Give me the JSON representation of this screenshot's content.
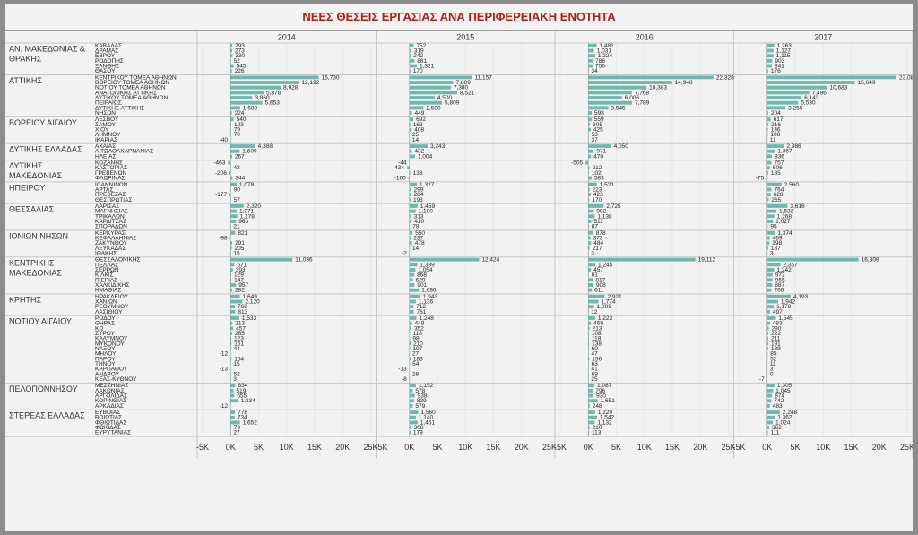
{
  "chart_data": {
    "type": "bar",
    "orientation": "horizontal",
    "title": "ΝΕΕΣ ΘΕΣΕΙΣ ΕΡΓΑΣΙΑΣ ΑΝΑ ΠΕΡΙΦΕΡΕΙΑΚΗ ΕΝΟΤΗΤΑ",
    "bar_color": "#6fb8ad",
    "title_color": "#b31b1b",
    "xlim": [
      -5000,
      25000
    ],
    "x_ticks": [
      -5000,
      0,
      5000,
      10000,
      15000,
      20000,
      25000
    ],
    "x_tick_labels": [
      "-5K",
      "0K",
      "5K",
      "10K",
      "15K",
      "20K",
      "25K"
    ],
    "years": [
      "2014",
      "2015",
      "2016",
      "2017"
    ],
    "regions": [
      {
        "name": "ΑΝ. ΜΑΚΕΔΟΝΙΑΣ & ΘΡΑΚΗΣ",
        "units": [
          {
            "name": "ΚΑΒΑΛΑΣ",
            "values": [
              293,
              752,
              1481,
              1263
            ]
          },
          {
            "name": "ΔΡΑΜΑΣ",
            "values": [
              273,
              319,
              1031,
              1127
            ]
          },
          {
            "name": "ΕΒΡΟΥ",
            "values": [
              330,
              242,
              1224,
              1115
            ]
          },
          {
            "name": "ΡΟΔΟΠΗΣ",
            "values": [
              52,
              881,
              786,
              903
            ]
          },
          {
            "name": "ΞΑΝΘΗΣ",
            "values": [
              545,
              1321,
              756,
              841
            ]
          },
          {
            "name": "ΘΑΣΟΥ",
            "values": [
              226,
              170,
              34,
              176
            ]
          }
        ]
      },
      {
        "name": "ΑΤΤΙΚΗΣ",
        "units": [
          {
            "name": "ΚΕΝΤΡΙΚΟΥ ΤΟΜΕΑ ΑΘΗΝΩΝ",
            "values": [
              15730,
              11157,
              22328,
              23084
            ]
          },
          {
            "name": "ΒΟΡΕΙΟΥ ΤΟΜΕΑ ΑΘΗΝΩΝ",
            "values": [
              12192,
              7809,
              14948,
              15649
            ]
          },
          {
            "name": "ΝΟΤΙΟΥ ΤΟΜΕΑ ΑΘΗΝΩΝ",
            "values": [
              8928,
              7380,
              10383,
              10683
            ]
          },
          {
            "name": "ΑΝΑΤΟΛΙΚΗΣ ΑΤΤΙΚΗΣ",
            "values": [
              5878,
              8521,
              7768,
              7496
            ]
          },
          {
            "name": "ΔΥΤΙΚΟΥ ΤΟΜΕΑ ΑΘΗΝΩΝ",
            "values": [
              3860,
              4500,
              6006,
              6143
            ]
          },
          {
            "name": "ΠΕΙΡΑΙΩΣ",
            "values": [
              5653,
              5809,
              7789,
              5530
            ]
          },
          {
            "name": "ΔΥΤΙΚΗΣ ΑΤΤΙΚΗΣ",
            "values": [
              1689,
              2500,
              3545,
              3255
            ]
          },
          {
            "name": "ΝΗΣΩΝ",
            "values": [
              224,
              449,
              598,
              204
            ]
          }
        ]
      },
      {
        "name": "ΒΟΡΕΙΟΥ ΑΙΓΑΙΟΥ",
        "units": [
          {
            "name": "ΛΕΣΒΟΥ",
            "values": [
              540,
              692,
              559,
              617
            ]
          },
          {
            "name": "ΣΑΜΟΥ",
            "values": [
              123,
              163,
              305,
              216
            ]
          },
          {
            "name": "ΧΙΟΥ",
            "values": [
              79,
              408,
              425,
              136
            ]
          },
          {
            "name": "ΛΗΜΝΟΥ",
            "values": [
              70,
              25,
              53,
              108
            ]
          },
          {
            "name": "ΙΚΑΡΙΑΣ",
            "values": [
              -40,
              14,
              37,
              11
            ]
          }
        ]
      },
      {
        "name": "ΔΥΤΙΚΗΣ ΕΛΛΑΔΑΣ",
        "units": [
          {
            "name": "ΑΧΑΙΑΣ",
            "values": [
              4388,
              3243,
              4050,
              2986
            ]
          },
          {
            "name": "ΑΙΤΩΛΟΑΚΑΡΝΑΝΙΑΣ",
            "values": [
              1609,
              432,
              971,
              1367
            ]
          },
          {
            "name": "ΗΛΕΙΑΣ",
            "values": [
              267,
              1004,
              470,
              836
            ]
          }
        ]
      },
      {
        "name": "ΔΥΤΙΚΗΣ ΜΑΚΕΔΟΝΙΑΣ",
        "units": [
          {
            "name": "ΚΟΖΑΝΗΣ",
            "values": [
              -463,
              -44,
              -505,
              757
            ]
          },
          {
            "name": "ΚΑΣΤΟΡΙΑΣ",
            "values": [
              42,
              -434,
              212,
              506
            ]
          },
          {
            "name": "ΓΡΕΒΕΝΩΝ",
            "values": [
              -206,
              138,
              102,
              185
            ]
          },
          {
            "name": "ΦΛΩΡΙΝΑΣ",
            "values": [
              344,
              -160,
              583,
              -75
            ]
          }
        ]
      },
      {
        "name": "ΗΠΕΙΡΟΥ",
        "units": [
          {
            "name": "ΙΩΑΝΝΙΝΩΝ",
            "values": [
              1078,
              1327,
              1521,
              2560
            ]
          },
          {
            "name": "ΑΡΤΑΣ",
            "values": [
              90,
              299,
              223,
              764
            ]
          },
          {
            "name": "ΠΡΕΒΕΖΑΣ",
            "values": [
              -177,
              284,
              423,
              628
            ]
          },
          {
            "name": "ΘΕΣΠΡΩΤΙΑΣ",
            "values": [
              57,
              193,
              170,
              265
            ]
          }
        ]
      },
      {
        "name": "ΘΕΣΣΑΛΙΑΣ",
        "units": [
          {
            "name": "ΛΑΡΙΣΑΣ",
            "values": [
              2320,
              1459,
              2725,
              3616
            ]
          },
          {
            "name": "ΜΑΓΝΗΣΙΑΣ",
            "values": [
              1071,
              1100,
              982,
              1632
            ]
          },
          {
            "name": "ΤΡΙΚΑΛΩΝ",
            "values": [
              1178,
              313,
              1138,
              1268
            ]
          },
          {
            "name": "ΚΑΡΔΙΤΣΑΣ",
            "values": [
              963,
              410,
              511,
              1027
            ]
          },
          {
            "name": "ΣΠΟΡΑΔΩΝ",
            "values": [
              21,
              78,
              87,
              95
            ]
          }
        ]
      },
      {
        "name": "ΙΟΝΙΩΝ ΝΗΣΩΝ",
        "units": [
          {
            "name": "ΚΕΡΚΥΡΑΣ",
            "values": [
              821,
              550,
              878,
              1374
            ]
          },
          {
            "name": "ΚΕΦΑΛΛΗΝΙΑΣ",
            "values": [
              -98,
              237,
              373,
              469
            ]
          },
          {
            "name": "ΖΑΚΥΝΘΟΥ",
            "values": [
              291,
              478,
              484,
              398
            ]
          },
          {
            "name": "ΛΕΥΚΑΔΑΣ",
            "values": [
              205,
              14,
              217,
              187
            ]
          },
          {
            "name": "ΙΘΑΚΗΣ",
            "values": [
              15,
              -2,
              3,
              3
            ]
          }
        ]
      },
      {
        "name": "ΚΕΝΤΡΙΚΗΣ ΜΑΚΕΔΟΝΙΑΣ",
        "units": [
          {
            "name": "ΘΕΣΣΑΛΟΝΙΚΗΣ",
            "values": [
              11036,
              12424,
              19112,
              16308
            ]
          },
          {
            "name": "ΠΕΛΛΑΣ",
            "values": [
              671,
              1389,
              1245,
              2367
            ]
          },
          {
            "name": "ΣΕΡΡΩΝ",
            "values": [
              393,
              1054,
              457,
              1242
            ]
          },
          {
            "name": "ΚΙΛΚΙΣ",
            "values": [
              129,
              868,
              61,
              972
            ]
          },
          {
            "name": "ΠΙΕΡΙΑΣ",
            "values": [
              147,
              629,
              817,
              955
            ]
          },
          {
            "name": "ΧΑΛΚΙΔΙΚΗΣ",
            "values": [
              957,
              901,
              908,
              887
            ]
          },
          {
            "name": "ΗΜΑΘΙΑΣ",
            "values": [
              282,
              1686,
              611,
              768
            ]
          }
        ]
      },
      {
        "name": "ΚΡΗΤΗΣ",
        "units": [
          {
            "name": "ΗΡΑΚΛΕΙΟΥ",
            "values": [
              1649,
              1943,
              2921,
              4193
            ]
          },
          {
            "name": "ΧΑΝΙΩΝ",
            "values": [
              2120,
              1136,
              1774,
              1942
            ]
          },
          {
            "name": "ΡΕΘΥΜΝΟΥ",
            "values": [
              768,
              712,
              1009,
              1178
            ]
          },
          {
            "name": "ΛΑΣΙΘΙΟΥ",
            "values": [
              813,
              761,
              12,
              497
            ]
          }
        ]
      },
      {
        "name": "ΝΟΤΙΟΥ ΑΙΓΑΙΟΥ",
        "units": [
          {
            "name": "ΡΟΔΟΥ",
            "values": [
              1533,
              1248,
              1223,
              1545
            ]
          },
          {
            "name": "ΘΗΡΑΣ",
            "values": [
              313,
              448,
              469,
              483
            ]
          },
          {
            "name": "ΚΩ",
            "values": [
              457,
              352,
              213,
              290
            ]
          },
          {
            "name": "ΣΥΡΟΥ",
            "values": [
              265,
              118,
              108,
              222
            ]
          },
          {
            "name": "ΚΑΛΥΜΝΟΥ",
            "values": [
              123,
              98,
              118,
              211
            ]
          },
          {
            "name": "ΜΥΚΟΝΟΥ",
            "values": [
              161,
              210,
              138,
              191
            ]
          },
          {
            "name": "ΝΑΞΟΥ",
            "values": [
              44,
              107,
              60,
              189
            ]
          },
          {
            "name": "ΜΗΛΟΥ",
            "values": [
              -12,
              27,
              47,
              85
            ]
          },
          {
            "name": "ΠΑΡΟΥ",
            "values": [
              154,
              183,
              156,
              52
            ]
          },
          {
            "name": "ΤΗΝΟΥ",
            "values": [
              15,
              54,
              63,
              11
            ]
          },
          {
            "name": "ΚΑΡΠΑΘΟΥ",
            "values": [
              -13,
              -13,
              41,
              3
            ]
          },
          {
            "name": "ΑΝΔΡΟΥ",
            "values": [
              52,
              28,
              69,
              0
            ]
          },
          {
            "name": "ΚΕΑΣ-ΚΥΘΝΟΥ",
            "values": [
              3,
              -8,
              25,
              -7
            ]
          }
        ]
      },
      {
        "name": "ΠΕΛΟΠΟΝΝΗΣΟΥ",
        "units": [
          {
            "name": "ΜΕΣΣΗΝΙΑΣ",
            "values": [
              834,
              1152,
              1087,
              1305
            ]
          },
          {
            "name": "ΛΑΚΩΝΙΑΣ",
            "values": [
              519,
              578,
              796,
              1045
            ]
          },
          {
            "name": "ΑΡΓΟΛΙΔΑΣ",
            "values": [
              655,
              938,
              930,
              874
            ]
          },
          {
            "name": "ΚΟΡΙΝΘΙΑΣ",
            "values": [
              1334,
              829,
              1651,
              742
            ]
          },
          {
            "name": "ΑΡΚΑΔΙΑΣ",
            "values": [
              -12,
              579,
              248,
              483
            ]
          }
        ]
      },
      {
        "name": "ΣΤΕΡΕΑΣ ΕΛΛΑΔΑΣ",
        "units": [
          {
            "name": "ΕΥΒΟΙΑΣ",
            "values": [
              778,
              1560,
              1220,
              2248
            ]
          },
          {
            "name": "ΒΟΙΩΤΙΑΣ",
            "values": [
              734,
              1140,
              1542,
              1362
            ]
          },
          {
            "name": "ΦΘΙΩΤΙΔΑΣ",
            "values": [
              1652,
              1451,
              1132,
              1024
            ]
          },
          {
            "name": "ΦΩΚΙΔΑΣ",
            "values": [
              79,
              308,
              210,
              362
            ]
          },
          {
            "name": "ΕΥΡΥΤΑΝΙΑΣ",
            "values": [
              27,
              179,
              113,
              111
            ]
          }
        ]
      }
    ]
  }
}
